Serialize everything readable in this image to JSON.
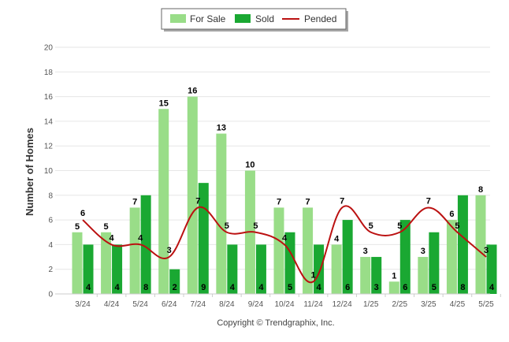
{
  "chart_data": {
    "type": "bar",
    "categories": [
      "3/24",
      "4/24",
      "5/24",
      "6/24",
      "7/24",
      "8/24",
      "9/24",
      "10/24",
      "11/24",
      "12/24",
      "1/25",
      "2/25",
      "3/25",
      "4/25",
      "5/25"
    ],
    "series": [
      {
        "name": "For Sale",
        "type": "bar",
        "color": "#99dd88",
        "values": [
          5,
          5,
          7,
          15,
          16,
          13,
          10,
          7,
          7,
          4,
          3,
          1,
          3,
          6,
          8
        ]
      },
      {
        "name": "Sold",
        "type": "bar",
        "color": "#1aa832",
        "values": [
          4,
          4,
          8,
          2,
          9,
          4,
          4,
          5,
          4,
          6,
          3,
          6,
          5,
          8,
          4
        ]
      },
      {
        "name": "Pended",
        "type": "line",
        "color": "#bb1111",
        "values": [
          6,
          4,
          4,
          3,
          7,
          5,
          5,
          4,
          1,
          7,
          5,
          5,
          7,
          5,
          3
        ]
      }
    ],
    "ylabel": "Number of Homes",
    "ylim": [
      0,
      20
    ],
    "yticks": [
      0,
      2,
      4,
      6,
      8,
      10,
      12,
      14,
      16,
      18,
      20
    ],
    "grid": true,
    "legend": "top-center"
  },
  "copyright": "Copyright © Trendgraphix, Inc."
}
